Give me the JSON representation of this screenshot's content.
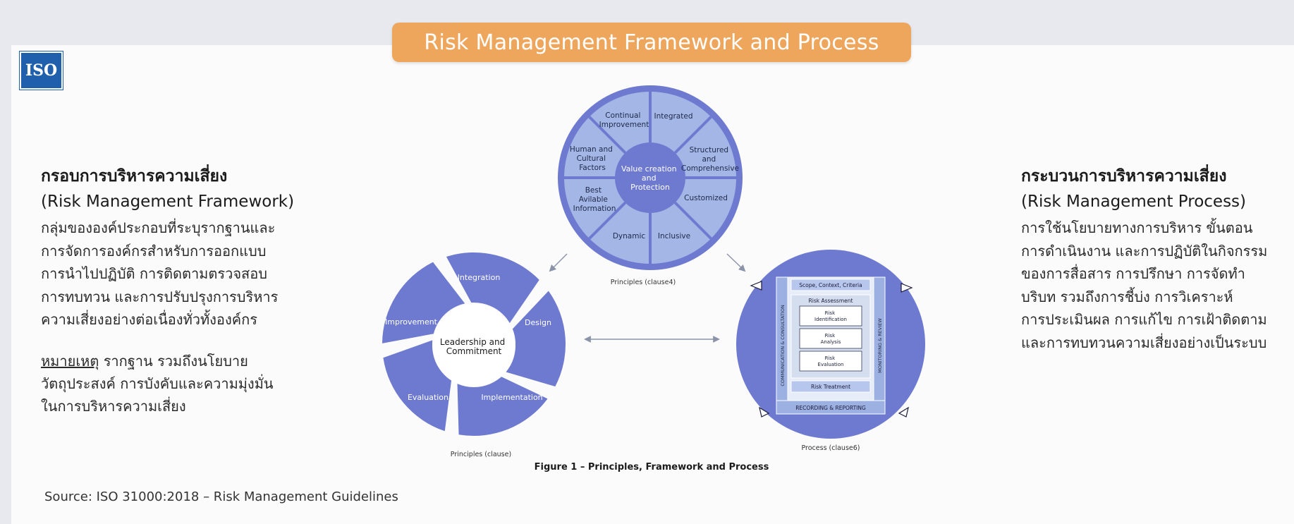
{
  "title": "Risk Management Framework and Process",
  "logo_text": "ISO",
  "left": {
    "heading_th": "กรอบการบริหารความเสี่ยง",
    "heading_en": "(Risk Management Framework)",
    "lines": [
      "กลุ่มขององค์ประกอบที่ระบุรากฐานและ",
      "การจัดการองค์กรสำหรับการออกแบบ",
      "การนำไปปฏิบัติ การติดตามตรวจสอบ",
      "การทบทวน และการปรับปรุงการบริหาร",
      "ความเสี่ยงอย่างต่อเนื่องทั่วทั้งองค์กร"
    ],
    "note_label": "หมายเหตุ",
    "note_lines": [
      "รากฐาน รวมถึงนโยบาย",
      "วัตถุประสงค์ การบังคับและความมุ่งมั่น",
      "ในการบริหารความเสี่ยง"
    ]
  },
  "right": {
    "heading_th": "กระบวนการบริหารความเสี่ยง",
    "heading_en": "(Risk Management Process)",
    "lines": [
      "การใช้นโยบายทางการบริหาร ขั้นตอน",
      "การดำเนินงาน และการปฏิบัติในกิจกรรม",
      "ของการสื่อสาร การปรึกษา การจัดทำ",
      "บริบท รวมถึงการชี้บ่ง การวิเคราะห์",
      "การประเมินผล การแก้ไข การเฝ้าติดตาม",
      "และการทบทวนความเสี่ยงอย่างเป็นระบบ"
    ]
  },
  "principles": {
    "center": [
      "Value creation",
      "and",
      "Protection"
    ],
    "segments": [
      [
        "Integrated"
      ],
      [
        "Structured",
        "and",
        "Comprehensive"
      ],
      [
        "Customized"
      ],
      [
        "Inclusive"
      ],
      [
        "Dynamic"
      ],
      [
        "Best",
        "Avilable",
        "Information"
      ],
      [
        "Human and",
        "Cultural",
        "Factors"
      ],
      [
        "Continual",
        "Improvement"
      ]
    ],
    "caption": "Principles (clause4)"
  },
  "framework": {
    "center": [
      "Leadership and",
      "Commitment"
    ],
    "segments": [
      "Integration",
      "Design",
      "Implementation",
      "Evaluation",
      "Improvement"
    ],
    "caption": "Principles (clause)"
  },
  "process": {
    "scope": "Scope, Context, Criteria",
    "assessment": "Risk Assessment",
    "identification": [
      "Risk",
      "Identification"
    ],
    "analysis": [
      "Risk",
      "Analysis"
    ],
    "evaluation": [
      "Risk",
      "Evaluation"
    ],
    "treatment": "Risk Treatment",
    "recording": "RECORDING & REPORTING",
    "communication": "COMMUNICATION & CONSULTATION",
    "monitoring": "MONITORING & REVIEW",
    "caption": "Process (clause6)"
  },
  "figure_caption": "Figure 1 – Principles, Framework and Process",
  "source": "Source: ISO 31000:2018 – Risk Management Guidelines",
  "colors": {
    "accent": "#eea65c",
    "wheel_outer": "#6e7ad0",
    "wheel_segment": "#a3b6e6",
    "center": "#6e7ad0",
    "iso_blue": "#1f5fab"
  }
}
